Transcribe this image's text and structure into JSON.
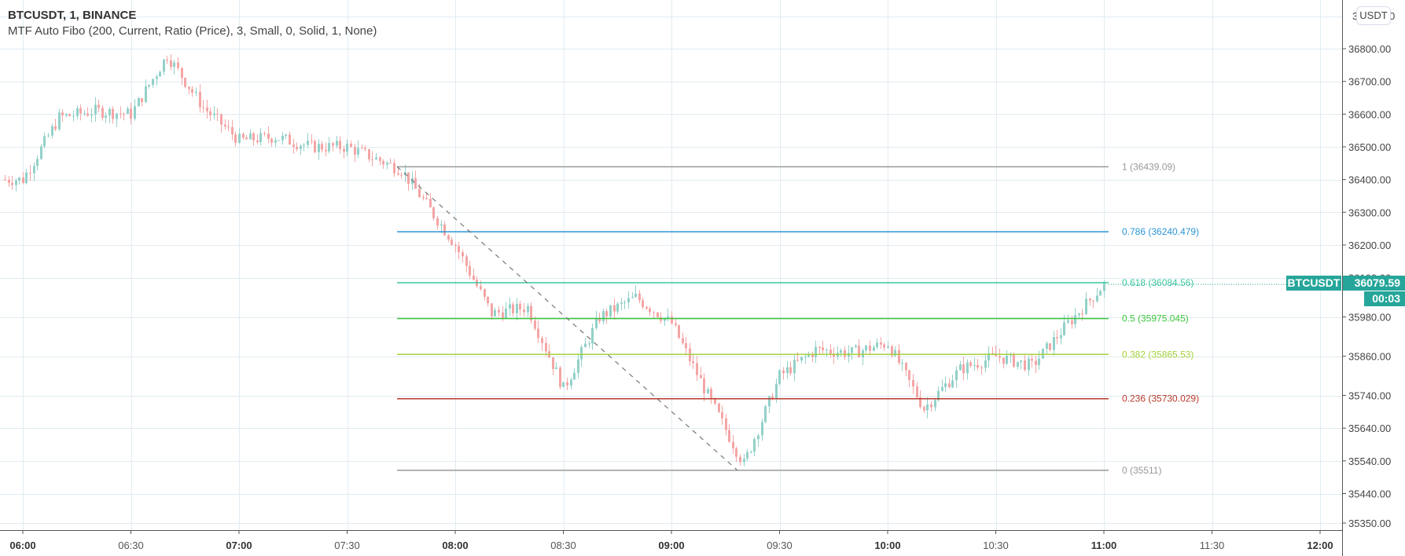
{
  "legend": {
    "symbol_line": "BTCUSDT, 1, BINANCE",
    "indicator_line": "MTF Auto Fibo (200, Current, Ratio (Price), 3, Small, 0, Solid, 1, None)"
  },
  "currency_button": "USDT",
  "last_price": {
    "symbol": "BTCUSDT",
    "value": "36079.59",
    "countdown": "00:03",
    "color": "#26a69a"
  },
  "colors": {
    "up": "#92d1c9",
    "down": "#f4a5a5",
    "grid": "#e1ecf2",
    "axis": "#555555"
  },
  "chart_data": {
    "type": "candlestick",
    "title": "BTCUSDT, 1, BINANCE",
    "xlabel": "",
    "ylabel": "USDT",
    "x_ticks": [
      "06:00",
      "06:30",
      "07:00",
      "07:30",
      "08:00",
      "08:30",
      "09:00",
      "09:30",
      "10:00",
      "10:30",
      "11:00",
      "11:30",
      "12:00"
    ],
    "x_ticks_bold": [
      "06:00",
      "07:00",
      "08:00",
      "09:00",
      "10:00",
      "11:00",
      "12:00"
    ],
    "y_ticks": [
      "36800.00",
      "36700.00",
      "36600.00",
      "36500.00",
      "36400.00",
      "36300.00",
      "36200.00",
      "36100.00",
      "35980.00",
      "35860.00",
      "35740.00",
      "35640.00",
      "35540.00",
      "35440.00",
      "35350.00"
    ],
    "ylim": [
      35330,
      36920
    ],
    "grid": true,
    "fib_levels": [
      {
        "ratio": "1",
        "price": 36439.09,
        "label": "1 (36439.09)",
        "color": "#999999"
      },
      {
        "ratio": "0.786",
        "price": 36240.479,
        "label": "0.786 (36240.479)",
        "color": "#2c95d6"
      },
      {
        "ratio": "0.618",
        "price": 36084.56,
        "label": "0.618 (36084.56)",
        "color": "#3cc6a0"
      },
      {
        "ratio": "0.5",
        "price": 35975.045,
        "label": "0.5 (35975.045)",
        "color": "#3dc43d"
      },
      {
        "ratio": "0.382",
        "price": 35865.53,
        "label": "0.382 (35865.53)",
        "color": "#a5d23d"
      },
      {
        "ratio": "0.236",
        "price": 35730.029,
        "label": "0.236 (35730.029)",
        "color": "#b93a2b"
      },
      {
        "ratio": "0",
        "price": 35511,
        "label": "0 (35511)",
        "color": "#999999"
      }
    ],
    "price_path_approx": [
      {
        "time": "06:00",
        "close": 36400
      },
      {
        "time": "06:10",
        "close": 36590
      },
      {
        "time": "06:20",
        "close": 36610
      },
      {
        "time": "06:30",
        "close": 36600
      },
      {
        "time": "06:40",
        "close": 36780
      },
      {
        "time": "06:50",
        "close": 36620
      },
      {
        "time": "07:00",
        "close": 36520
      },
      {
        "time": "07:10",
        "close": 36530
      },
      {
        "time": "07:20",
        "close": 36500
      },
      {
        "time": "07:30",
        "close": 36500
      },
      {
        "time": "07:45",
        "close": 36430
      },
      {
        "time": "08:00",
        "close": 36200
      },
      {
        "time": "08:10",
        "close": 35990
      },
      {
        "time": "08:20",
        "close": 36010
      },
      {
        "time": "08:30",
        "close": 35760
      },
      {
        "time": "08:40",
        "close": 35980
      },
      {
        "time": "08:50",
        "close": 36040
      },
      {
        "time": "09:00",
        "close": 35960
      },
      {
        "time": "09:10",
        "close": 35740
      },
      {
        "time": "09:20",
        "close": 35530
      },
      {
        "time": "09:30",
        "close": 35800
      },
      {
        "time": "09:40",
        "close": 35880
      },
      {
        "time": "09:50",
        "close": 35870
      },
      {
        "time": "10:00",
        "close": 35900
      },
      {
        "time": "10:10",
        "close": 35700
      },
      {
        "time": "10:20",
        "close": 35820
      },
      {
        "time": "10:30",
        "close": 35860
      },
      {
        "time": "10:40",
        "close": 35830
      },
      {
        "time": "10:50",
        "close": 35960
      },
      {
        "time": "11:00",
        "close": 36079.59
      }
    ],
    "last_price": 36079.59
  }
}
